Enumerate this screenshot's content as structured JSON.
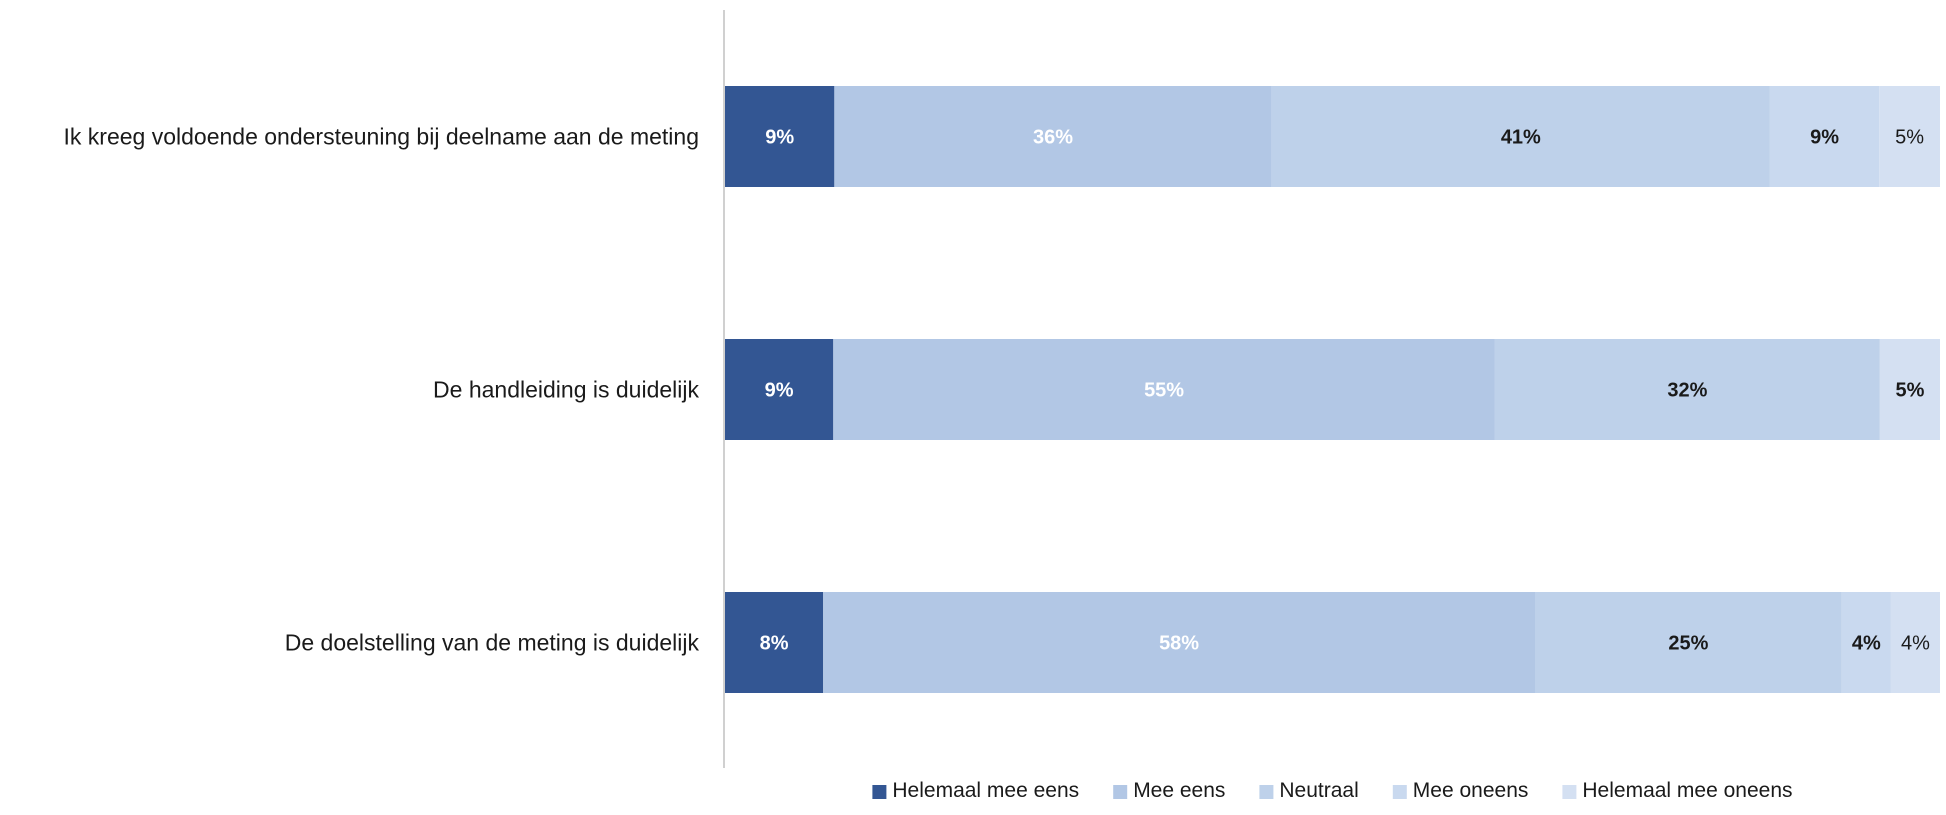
{
  "chart_data": {
    "type": "bar",
    "orientation": "horizontal",
    "stacked": true,
    "normalized": true,
    "categories": [
      "Ik kreeg voldoende ondersteuning bij deelname aan de meting",
      "De handleiding is duidelijk",
      "De doelstelling van de meting is duidelijk"
    ],
    "series": [
      {
        "name": "Helemaal mee eens",
        "values": [
          9,
          9,
          8
        ],
        "labels": [
          "9%",
          "9%",
          "8%"
        ],
        "color": "#335693",
        "label_color": "#ffffff",
        "label_bold": [
          true,
          true,
          true
        ]
      },
      {
        "name": "Mee eens",
        "values": [
          36,
          55,
          58
        ],
        "labels": [
          "36%",
          "55%",
          "58%"
        ],
        "color": "#b2c7e5",
        "label_color": "#ffffff",
        "label_bold": [
          true,
          true,
          true
        ]
      },
      {
        "name": "Neutraal",
        "values": [
          41,
          32,
          25
        ],
        "labels": [
          "41%",
          "32%",
          "25%"
        ],
        "color": "#bed1ea",
        "label_color": "#1a1a1a",
        "label_bold": [
          true,
          true,
          true
        ]
      },
      {
        "name": "Mee oneens",
        "values": [
          9,
          0,
          4
        ],
        "labels": [
          "9%",
          "",
          "4%"
        ],
        "color": "#c9d9ef",
        "label_color": "#1a1a1a",
        "label_bold": [
          true,
          false,
          true
        ]
      },
      {
        "name": "Helemaal mee oneens",
        "values": [
          5,
          5,
          4
        ],
        "labels": [
          "5%",
          "5%",
          "4%"
        ],
        "color": "#d4e0f2",
        "label_color": "#1a1a1a",
        "label_bold": [
          false,
          true,
          false
        ]
      }
    ],
    "xlim": [
      0,
      100
    ],
    "grid": false,
    "legend": "bottom"
  }
}
